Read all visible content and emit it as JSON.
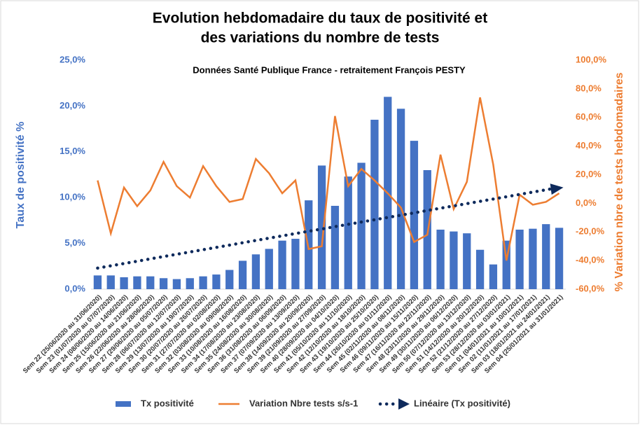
{
  "chart_data": {
    "type": "bar-line",
    "title": [
      "Evolution hebdomadaire du taux de positivité et",
      "des variations du nombre de tests"
    ],
    "subtitle": "Données Santé Publique France - retraitement François PESTY",
    "y_label": "Taux de positivité %",
    "y2_label": "% Variation nbre de tests hebdomadaires",
    "categories": [
      "Sem 22 (25/06/2020 au 31/06/2020)",
      "Sem 23 (01/07/2020 au 07/07/2020)",
      "Sem 24 (08/06/2020 au 14/06/2020)",
      "Sem 25 (15/06/2020 au 21/06/2020)",
      "Sem 26 (22/06/2020 au 28/06/2020)",
      "Sem 27 (29/06/2020 au 05/07/2020)",
      "Sem 28 (06/07/2020 au 12/07/2020)",
      "Sem 29 (13/07/2020 au 19/07/2020)",
      "Sem 30 (20/07/2020 au 26/07/2020)",
      "Sem 31 (27/07/2020 au 02/08/2020)",
      "Sem 32 (03/08/2020 au 09/08/2020)",
      "Sem 33 (10/08/2020 au 16/08/2020)",
      "Sem 34 (17/08/2020 au 23/08/2020)",
      "Sem 35 (24/08/2020 au 30/08/2020)",
      "Sem 36 (31/08/2020 au 06/09/2020)",
      "Sem 37 (07/09/2020 au 13/09/2020)",
      "Sem 38 (14/09/2020 au 20/09/2020)",
      "Sem 39 (21/09/2020 au 27/09/2020)",
      "Sem 40 (28/09/2020 au 04/10/2020)",
      "Sem 41 (05/10/2020 au 11/10/2020)",
      "Sem 42 (12/10/2020 au 18/10/2020)",
      "Sem 43 (19/10/2020 au 25/10/2020)",
      "Sem 44 (26/10/2020 au 01/11/2020)",
      "Sem 45 (02/11/2020 au 08/11/2020)",
      "Sem 46 (09/11/2020 au 15/11/2020)",
      "Sem 47 (16/11/2020 au 22/11/2020)",
      "Sem 48 (23/11/2020 au 29/11/2020)",
      "Sem 49 (30/11/2020 au 06/12/2020)",
      "Sem 50 (07/12/2020 au 13/12/2020)",
      "Sem 51 (14/12/2020 au 20/12/2020)",
      "Sem 52 (21/12/2020 au 27/12/2020)",
      "Sem 53 (28/12/2020 au 03/01/2021)",
      "Sem 01 (04/01/2021 au 10/01/2021)",
      "Sem 02 (11/01/2021 au 17/01/2021)",
      "Sem 03 (18/01/2021 au 24/01/2021)",
      "Sem 04 (25/01/2021 au 31/01/2021)"
    ],
    "series": [
      {
        "name": "Tx positivité",
        "type": "bar",
        "color": "#4472c4",
        "values": [
          1.5,
          1.5,
          1.3,
          1.4,
          1.4,
          1.2,
          1.1,
          1.2,
          1.4,
          1.6,
          2.1,
          3.1,
          3.8,
          4.4,
          5.3,
          5.5,
          9.7,
          13.5,
          9.1,
          12.3,
          13.8,
          18.5,
          21.0,
          19.7,
          16.2,
          13.0,
          6.5,
          6.3,
          6.1,
          4.3,
          2.7,
          5.3,
          6.5,
          6.6,
          7.1,
          6.7
        ]
      },
      {
        "name": "Variation Nbre tests s/s-1",
        "type": "line",
        "axis": "y2",
        "color": "#ed7d31",
        "values": [
          16,
          -21,
          11,
          -2,
          9,
          29,
          12,
          4,
          26,
          12,
          1,
          3,
          31,
          21,
          7,
          16,
          -32,
          -30,
          61,
          12,
          24,
          16,
          7,
          -3,
          -27,
          -22,
          34,
          -4,
          15,
          74,
          27,
          -40,
          6,
          -1,
          1,
          7
        ]
      },
      {
        "name": "Linéaire (Tx positivité)",
        "type": "trend",
        "color": "#0e2a5c",
        "values": [
          2.3,
          2.55,
          2.8,
          3.05,
          3.31,
          3.56,
          3.81,
          4.06,
          4.31,
          4.56,
          4.81,
          5.07,
          5.32,
          5.57,
          5.82,
          6.07,
          6.32,
          6.57,
          6.83,
          7.08,
          7.33,
          7.58,
          7.83,
          8.08,
          8.33,
          8.59,
          8.84,
          9.09,
          9.34,
          9.59,
          9.84,
          10.09,
          10.35,
          10.6,
          10.85,
          11.1
        ]
      }
    ],
    "ylim": [
      0,
      25
    ],
    "yticks": [
      {
        "value": 0,
        "label": "0,0%"
      },
      {
        "value": 5,
        "label": "5,0%"
      },
      {
        "value": 10,
        "label": "10,0%"
      },
      {
        "value": 15,
        "label": "15,0%"
      },
      {
        "value": 20,
        "label": "20,0%"
      },
      {
        "value": 25,
        "label": "25,0%"
      }
    ],
    "y2lim": [
      -60,
      100
    ],
    "y2ticks": [
      {
        "value": -60,
        "label": "-60,0%"
      },
      {
        "value": -40,
        "label": "-40,0%"
      },
      {
        "value": -20,
        "label": "-20,0%"
      },
      {
        "value": 0,
        "label": "0,0%"
      },
      {
        "value": 20,
        "label": "20,0%"
      },
      {
        "value": 40,
        "label": "40,0%"
      },
      {
        "value": 60,
        "label": "60,0%"
      },
      {
        "value": 80,
        "label": "80,0%"
      },
      {
        "value": 100,
        "label": "100,0%"
      }
    ],
    "legend": "bottom"
  }
}
